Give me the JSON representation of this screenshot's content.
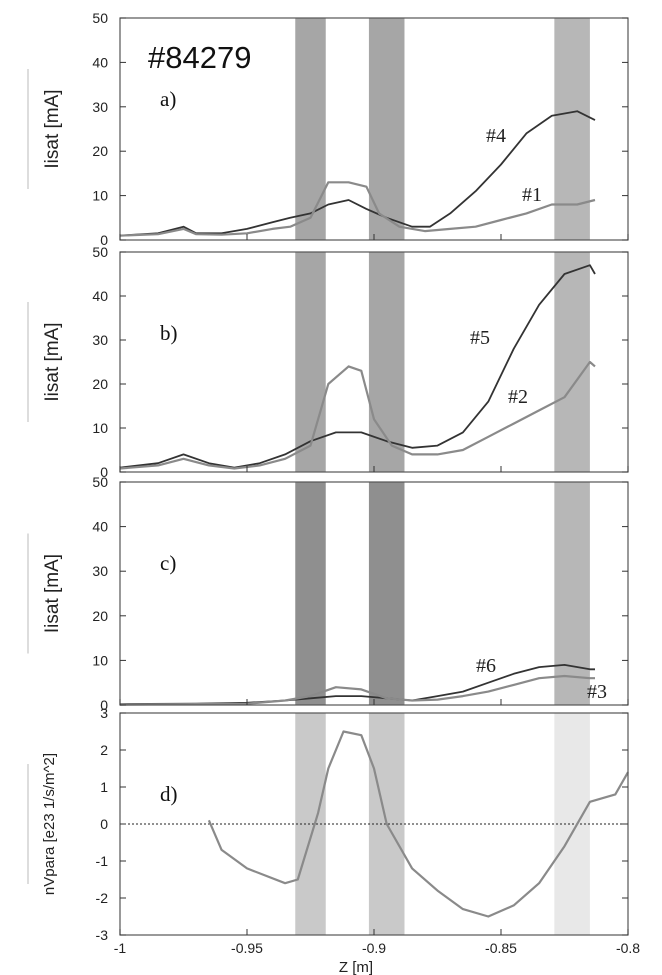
{
  "figure": {
    "shot": "#84279",
    "xlabel": "Z [m]"
  },
  "colors": {
    "dark": "#333333",
    "light": "#8a8a8a",
    "frame": "#555555"
  },
  "chart_data": [
    {
      "type": "line",
      "panel": "a)",
      "ylabel": "Iisat [mA]",
      "xlim": [
        -1,
        -0.8
      ],
      "ylim": [
        0,
        50
      ],
      "yticks": [
        0,
        10,
        20,
        30,
        40,
        50
      ],
      "xticks": [],
      "series": [
        {
          "name": "#4",
          "color": "dark",
          "x": [
            -1,
            -0.985,
            -0.975,
            -0.97,
            -0.96,
            -0.95,
            -0.94,
            -0.933,
            -0.925,
            -0.918,
            -0.91,
            -0.903,
            -0.895,
            -0.885,
            -0.878,
            -0.87,
            -0.86,
            -0.85,
            -0.84,
            -0.83,
            -0.82,
            -0.813
          ],
          "y": [
            1,
            1.5,
            3,
            1.5,
            1.5,
            2.5,
            4,
            5,
            6,
            8,
            9,
            7,
            5,
            3,
            3,
            6,
            11,
            17,
            24,
            28,
            29,
            27
          ]
        },
        {
          "name": "#1",
          "color": "light",
          "x": [
            -1,
            -0.985,
            -0.975,
            -0.97,
            -0.96,
            -0.95,
            -0.94,
            -0.933,
            -0.925,
            -0.918,
            -0.91,
            -0.903,
            -0.898,
            -0.89,
            -0.88,
            -0.87,
            -0.86,
            -0.85,
            -0.84,
            -0.83,
            -0.82,
            -0.813
          ],
          "y": [
            1,
            1.3,
            2.5,
            1.3,
            1.2,
            1.5,
            2.5,
            3,
            5,
            13,
            13,
            12,
            6,
            3,
            2,
            2.5,
            3,
            4.5,
            6,
            8,
            8,
            9
          ]
        }
      ],
      "annotations": [
        "#4",
        "#1"
      ]
    },
    {
      "type": "line",
      "panel": "b)",
      "ylabel": "Iisat [mA]",
      "xlim": [
        -1,
        -0.8
      ],
      "ylim": [
        0,
        50
      ],
      "yticks": [
        0,
        10,
        20,
        30,
        40,
        50
      ],
      "xticks": [],
      "series": [
        {
          "name": "#5",
          "color": "dark",
          "x": [
            -1,
            -0.985,
            -0.975,
            -0.965,
            -0.955,
            -0.945,
            -0.935,
            -0.925,
            -0.915,
            -0.905,
            -0.895,
            -0.885,
            -0.875,
            -0.865,
            -0.855,
            -0.845,
            -0.835,
            -0.825,
            -0.815,
            -0.813
          ],
          "y": [
            1,
            2,
            4,
            2,
            1,
            2,
            4,
            7,
            9,
            9,
            7,
            5.5,
            6,
            9,
            16,
            28,
            38,
            45,
            47,
            45
          ]
        },
        {
          "name": "#2",
          "color": "light",
          "x": [
            -1,
            -0.985,
            -0.975,
            -0.965,
            -0.955,
            -0.945,
            -0.935,
            -0.925,
            -0.918,
            -0.91,
            -0.905,
            -0.9,
            -0.893,
            -0.885,
            -0.875,
            -0.865,
            -0.855,
            -0.845,
            -0.835,
            -0.825,
            -0.815,
            -0.813
          ],
          "y": [
            0.8,
            1.5,
            3,
            1.5,
            0.8,
            1.5,
            3,
            6,
            20,
            24,
            23,
            12,
            6,
            4,
            4,
            5,
            8,
            11,
            14,
            17,
            25,
            24
          ]
        }
      ],
      "annotations": [
        "#5",
        "#2"
      ]
    },
    {
      "type": "line",
      "panel": "c)",
      "ylabel": "Iisat [mA]",
      "xlim": [
        -1,
        -0.8
      ],
      "ylim": [
        0,
        50
      ],
      "yticks": [
        0,
        10,
        20,
        30,
        40,
        50
      ],
      "xticks": [],
      "series": [
        {
          "name": "#6",
          "color": "dark",
          "x": [
            -1,
            -0.97,
            -0.95,
            -0.935,
            -0.925,
            -0.915,
            -0.905,
            -0.895,
            -0.885,
            -0.875,
            -0.865,
            -0.855,
            -0.845,
            -0.835,
            -0.825,
            -0.815,
            -0.813
          ],
          "y": [
            0.2,
            0.3,
            0.5,
            1,
            1.5,
            2,
            2,
            1.5,
            1,
            2,
            3,
            5,
            7,
            8.5,
            9,
            8,
            8
          ]
        },
        {
          "name": "#3",
          "color": "light",
          "x": [
            -1,
            -0.97,
            -0.95,
            -0.935,
            -0.925,
            -0.915,
            -0.905,
            -0.895,
            -0.885,
            -0.875,
            -0.865,
            -0.855,
            -0.845,
            -0.835,
            -0.825,
            -0.815,
            -0.813
          ],
          "y": [
            0.1,
            0.2,
            0.3,
            1,
            2,
            4,
            3.5,
            1.5,
            1,
            1.2,
            2,
            3,
            4.5,
            6,
            6.5,
            6,
            6
          ]
        }
      ],
      "annotations": [
        "#6",
        "#3"
      ]
    },
    {
      "type": "line",
      "panel": "d)",
      "ylabel": "nVpara [e23 1/s/m^2]",
      "xlim": [
        -1,
        -0.8
      ],
      "ylim": [
        -3,
        3
      ],
      "yticks": [
        -3,
        -2,
        -1,
        0,
        1,
        2,
        3
      ],
      "xticks": [
        -1,
        -0.95,
        -0.9,
        -0.85,
        -0.8
      ],
      "series": [
        {
          "name": "",
          "color": "light",
          "x": [
            -0.965,
            -0.96,
            -0.95,
            -0.935,
            -0.93,
            -0.922,
            -0.918,
            -0.912,
            -0.905,
            -0.9,
            -0.895,
            -0.885,
            -0.875,
            -0.865,
            -0.855,
            -0.845,
            -0.835,
            -0.825,
            -0.815,
            -0.805,
            -0.8
          ],
          "y": [
            0.1,
            -0.7,
            -1.2,
            -1.6,
            -1.5,
            0.3,
            1.5,
            2.5,
            2.4,
            1.5,
            0,
            -1.2,
            -1.8,
            -2.3,
            -2.5,
            -2.2,
            -1.6,
            -0.6,
            0.6,
            0.8,
            1.4
          ]
        }
      ],
      "zero_line": true,
      "annotations": []
    }
  ],
  "shaded_bands": [
    {
      "x": [
        -0.931,
        -0.919
      ],
      "tone": "dark"
    },
    {
      "x": [
        -0.902,
        -0.888
      ],
      "tone": "dark"
    },
    {
      "x": [
        -0.829,
        -0.815
      ],
      "tone": "light"
    }
  ]
}
